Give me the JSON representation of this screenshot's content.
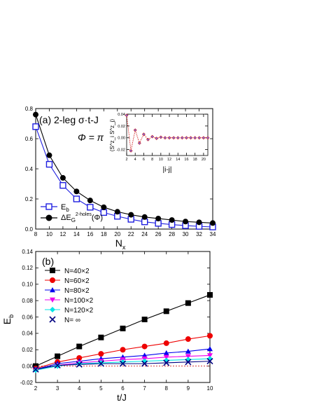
{
  "chart_data": [
    {
      "type": "line",
      "panel_label": "(a) 2-leg σ·t-J",
      "phi_label": "Φ = π",
      "xlabel": "N",
      "xlabel_sub": "x",
      "ylabel": "",
      "xlim": [
        8,
        34
      ],
      "ylim": [
        0.0,
        0.8
      ],
      "xticks": [
        8,
        10,
        12,
        14,
        16,
        18,
        20,
        22,
        24,
        26,
        28,
        30,
        32,
        34
      ],
      "yticks": [
        "0.0",
        "0.2",
        "0.4",
        "0.6",
        "0.8"
      ],
      "legend_position": "bottom-left",
      "series": [
        {
          "name": "E_b",
          "legend_main": "E",
          "legend_sub": "b",
          "marker": "open-square",
          "color": "#1f1fe0",
          "x": [
            8,
            10,
            12,
            14,
            16,
            18,
            20,
            22,
            24,
            26,
            28,
            30,
            32,
            34
          ],
          "values": [
            0.68,
            0.43,
            0.29,
            0.2,
            0.145,
            0.11,
            0.085,
            0.065,
            0.048,
            0.038,
            0.03,
            0.023,
            0.018,
            0.014
          ]
        },
        {
          "name": "ΔE_G^2-holes(Φ)",
          "legend_main": "ΔE",
          "legend_sub": "G",
          "legend_sup": "2-holes",
          "legend_tail": "(Φ)",
          "marker": "filled-circle",
          "color": "#000000",
          "x": [
            8,
            10,
            12,
            14,
            16,
            18,
            20,
            22,
            24,
            26,
            28,
            30,
            32,
            34
          ],
          "values": [
            0.76,
            0.49,
            0.34,
            0.25,
            0.19,
            0.145,
            0.115,
            0.095,
            0.08,
            0.07,
            0.06,
            0.05,
            0.045,
            0.04
          ]
        }
      ],
      "inset": {
        "type": "line",
        "xlabel": "|i-j|",
        "ylabel": "⟨S^z_i S^z_j⟩",
        "xlim": [
          2,
          21
        ],
        "ylim": [
          -0.03,
          0.04
        ],
        "xticks": [
          2,
          4,
          6,
          8,
          10,
          12,
          14,
          16,
          18,
          20
        ],
        "yticks": [
          "-0.02",
          "0.00",
          "0.02",
          "0.04"
        ],
        "x": [
          2,
          3,
          4,
          5,
          6,
          7,
          8,
          9,
          10,
          11,
          12,
          13,
          14,
          15,
          16,
          17,
          18,
          19,
          20,
          21
        ],
        "values": [
          0.038,
          -0.022,
          0.013,
          -0.009,
          0.006,
          -0.003,
          0.002,
          -0.001,
          0.001,
          0.0,
          0.0,
          0.0,
          0.0,
          0.0,
          0.0,
          0.0,
          0.0,
          0.0,
          0.0,
          0.0
        ]
      }
    },
    {
      "type": "line",
      "panel_label": "(b)",
      "xlabel": "t/J",
      "ylabel": "E",
      "ylabel_sub": "b",
      "xlim": [
        2,
        10
      ],
      "ylim": [
        -0.02,
        0.14
      ],
      "xticks": [
        2,
        3,
        4,
        5,
        6,
        7,
        8,
        9,
        10
      ],
      "yticks": [
        "-0.02",
        "0.00",
        "0.02",
        "0.04",
        "0.06",
        "0.08",
        "0.10",
        "0.12",
        "0.14"
      ],
      "legend_position": "top-left",
      "series": [
        {
          "name": "N=40×2",
          "marker": "filled-square",
          "color": "#000000",
          "x": [
            2,
            3,
            4,
            5,
            6,
            7,
            8,
            9,
            10
          ],
          "values": [
            0.0,
            0.012,
            0.024,
            0.035,
            0.046,
            0.057,
            0.067,
            0.077,
            0.087
          ]
        },
        {
          "name": "N=60×2",
          "marker": "filled-circle",
          "color": "#ee0000",
          "x": [
            2,
            3,
            4,
            5,
            6,
            7,
            8,
            9,
            10
          ],
          "values": [
            -0.003,
            0.005,
            0.01,
            0.015,
            0.02,
            0.024,
            0.028,
            0.033,
            0.037
          ]
        },
        {
          "name": "N=80×2",
          "marker": "filled-triangle-up",
          "color": "#0000ee",
          "x": [
            2,
            3,
            4,
            5,
            6,
            7,
            8,
            9,
            10
          ],
          "values": [
            -0.004,
            0.003,
            0.006,
            0.009,
            0.011,
            0.013,
            0.016,
            0.018,
            0.021
          ]
        },
        {
          "name": "N=100×2",
          "marker": "filled-triangle-down",
          "color": "#ee00ee",
          "x": [
            2,
            3,
            4,
            5,
            6,
            7,
            8,
            9,
            10
          ],
          "values": [
            -0.005,
            0.001,
            0.004,
            0.006,
            0.008,
            0.009,
            0.011,
            0.012,
            0.013
          ]
        },
        {
          "name": "N=120×2",
          "marker": "filled-diamond",
          "color": "#00e5e5",
          "x": [
            2,
            3,
            4,
            5,
            6,
            7,
            8,
            9,
            10
          ],
          "values": [
            -0.005,
            0.0,
            0.003,
            0.004,
            0.005,
            0.006,
            0.007,
            0.008,
            0.009
          ]
        },
        {
          "name": "N= ∞",
          "marker": "x",
          "color": "#000080",
          "x": [
            2,
            3,
            4,
            5,
            6,
            7,
            8,
            9,
            10
          ],
          "values": [
            -0.004,
            0.001,
            0.002,
            0.003,
            0.003,
            0.003,
            0.004,
            0.005,
            0.006
          ]
        }
      ],
      "reference_line": {
        "y": 0.0,
        "style": "dashed",
        "color": "#cc0000"
      }
    }
  ]
}
